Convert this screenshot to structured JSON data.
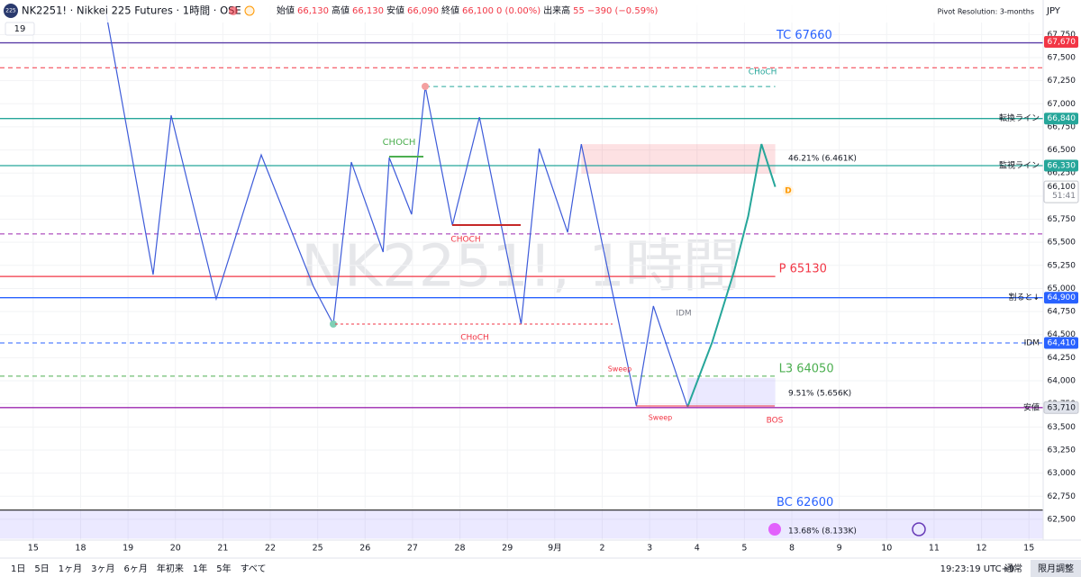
{
  "header": {
    "symbol": "NK2251! · Nikkei 225 Futures · 1時間 · OSE",
    "logo": "225",
    "ohlc": [
      {
        "label": "始値",
        "value": "66,130"
      },
      {
        "label": "高値",
        "value": "66,130"
      },
      {
        "label": "安値",
        "value": "66,090"
      },
      {
        "label": "終値",
        "value": "66,100"
      }
    ],
    "change": "0 (0.00%)",
    "volume_label": "出来高",
    "volume": "55",
    "volume_change": "−390 (−0.59%)",
    "interval_badge": "19",
    "pivot": "Pivot Resolution: 3-months",
    "currency": "JPY"
  },
  "chart_data": {
    "type": "line",
    "watermark": "NK2251!, 1時間",
    "categories": [
      "15",
      "18",
      "19",
      "20",
      "21",
      "22",
      "25",
      "26",
      "27",
      "28",
      "29",
      "9月",
      "2",
      "3",
      "4",
      "5",
      "8",
      "9",
      "10",
      "11",
      "12",
      "15"
    ],
    "xlim": [
      -0.7,
      21.3
    ],
    "ylim": [
      62275,
      68075
    ],
    "yticks": [
      {
        "value": 62500,
        "label": "62,500"
      },
      {
        "value": 62750,
        "label": "62,750"
      },
      {
        "value": 63000,
        "label": "63,000"
      },
      {
        "value": 63250,
        "label": "63,250"
      },
      {
        "value": 63500,
        "label": "63,500"
      },
      {
        "value": 63750,
        "label": "63,750"
      },
      {
        "value": 64000,
        "label": "64,000"
      },
      {
        "value": 64250,
        "label": "64,250"
      },
      {
        "value": 64500,
        "label": "64,500"
      },
      {
        "value": 64750,
        "label": "64,750"
      },
      {
        "value": 65000,
        "label": "65,000"
      },
      {
        "value": 65250,
        "label": "65,250"
      },
      {
        "value": 65500,
        "label": "65,500"
      },
      {
        "value": 65750,
        "label": "65,750"
      },
      {
        "value": 66000,
        "label": "66,000"
      },
      {
        "value": 66250,
        "label": "66,250"
      },
      {
        "value": 66500,
        "label": "66,500"
      },
      {
        "value": 66750,
        "label": "66,750"
      },
      {
        "value": 67000,
        "label": "67,000"
      },
      {
        "value": 67250,
        "label": "67,250"
      },
      {
        "value": 67500,
        "label": "67,500"
      },
      {
        "value": 67750,
        "label": "67,750"
      }
    ],
    "zigzag": {
      "color": "#3d5bd9",
      "x": [
        1.54,
        2.53,
        2.91,
        3.86,
        4.81,
        5.91,
        6.33,
        6.71,
        7.38,
        7.51,
        7.98,
        8.27,
        8.84,
        9.41,
        10.29,
        10.67,
        11.27,
        11.56,
        12.72,
        13.08,
        13.8
      ],
      "values": [
        67977,
        65150,
        66875,
        64887,
        66446,
        65023,
        64614,
        66368,
        65394,
        66417,
        65803,
        67187,
        65686,
        66856,
        64614,
        66515,
        65608,
        66563,
        63727,
        64809,
        63717
      ]
    },
    "recent": {
      "color": "#26a69a",
      "x": [
        13.8,
        14.32,
        14.79,
        15.08,
        15.36,
        15.65
      ],
      "values": [
        63717,
        64419,
        65199,
        65784,
        66563,
        66100
      ]
    },
    "levels": [
      {
        "value": 67660,
        "label": "TC 67660",
        "color": "#5b3ea8",
        "text_color": "#2962ff",
        "dash": false
      },
      {
        "value": 67390,
        "color": "#f23645",
        "dash": true
      },
      {
        "value": 67187,
        "label": "CHoCH",
        "color": "#26a69a",
        "text_color": "#26a69a",
        "dash": true,
        "x0": 8.27,
        "x1": 15.65
      },
      {
        "value": 66840,
        "color": "#26a69a",
        "dash": false
      },
      {
        "value": 66330,
        "color": "#26a69a",
        "dash": false
      },
      {
        "value": 65590,
        "color": "#9c27b0",
        "dash": true
      },
      {
        "value": 65130,
        "label": "P 65130",
        "color": "#f23645",
        "text_color": "#f23645",
        "dash": false,
        "x1": 15.65
      },
      {
        "value": 64900,
        "color": "#2962ff",
        "dash": false
      },
      {
        "value": 64410,
        "color": "#2962ff",
        "dash": true
      },
      {
        "value": 64050,
        "label": "L3 64050",
        "color": "#4caf50",
        "text_color": "#4caf50",
        "dash": true,
        "x1": 15.65
      },
      {
        "value": 63710,
        "color": "#9c27b0",
        "dash": false
      },
      {
        "value": 62600,
        "label": "BC 62600",
        "color": "#333333",
        "text_color": "#2962ff",
        "dash": false
      }
    ],
    "zones": [
      {
        "from": 66243,
        "to": 66563,
        "x0": 11.56,
        "x1": 15.65,
        "color": "rgba(242,54,69,0.15)"
      },
      {
        "from": 63717,
        "to": 64030,
        "x0": 13.8,
        "x1": 15.65,
        "color": "rgba(120,110,255,0.15)"
      },
      {
        "from": 62290,
        "to": 62600,
        "x0": -0.7,
        "x1": 21.3,
        "color": "rgba(120,110,255,0.15)"
      }
    ],
    "badges": [
      {
        "value": 67670,
        "label": "67,670",
        "color": "#f23645"
      },
      {
        "value": 66840,
        "label": "66,840",
        "color": "#26a69a",
        "tag": "転換ライン"
      },
      {
        "value": 66330,
        "label": "66,330",
        "color": "#26a69a",
        "tag": "監視ライン"
      },
      {
        "value": 66100,
        "label": "66,100",
        "color": "#ffffff",
        "sub": "51:41"
      },
      {
        "value": 64900,
        "label": "64,900",
        "color": "#2962ff",
        "tag": "割ると↓"
      },
      {
        "value": 64410,
        "label": "64,410",
        "color": "#2962ff",
        "tag": "IDM"
      },
      {
        "value": 63710,
        "label": "63,710",
        "color": "#e0e3eb",
        "tag": "安値"
      }
    ]
  },
  "annotations": [
    "CHOCH",
    "CHOCH",
    "CHoCH",
    "Sweep",
    "Sweep",
    "IDM",
    "BOS",
    "46.21% (6.461K)",
    "9.51% (5.656K)",
    "13.68% (8.133K)",
    "D"
  ],
  "footer": {
    "ranges": [
      "1日",
      "5日",
      "1ヶ月",
      "3ヶ月",
      "6ヶ月",
      "年初来",
      "1年",
      "5年",
      "すべて"
    ],
    "time": "19:23:19 UTC+9",
    "session": "通常",
    "adjust": "限月調整"
  }
}
